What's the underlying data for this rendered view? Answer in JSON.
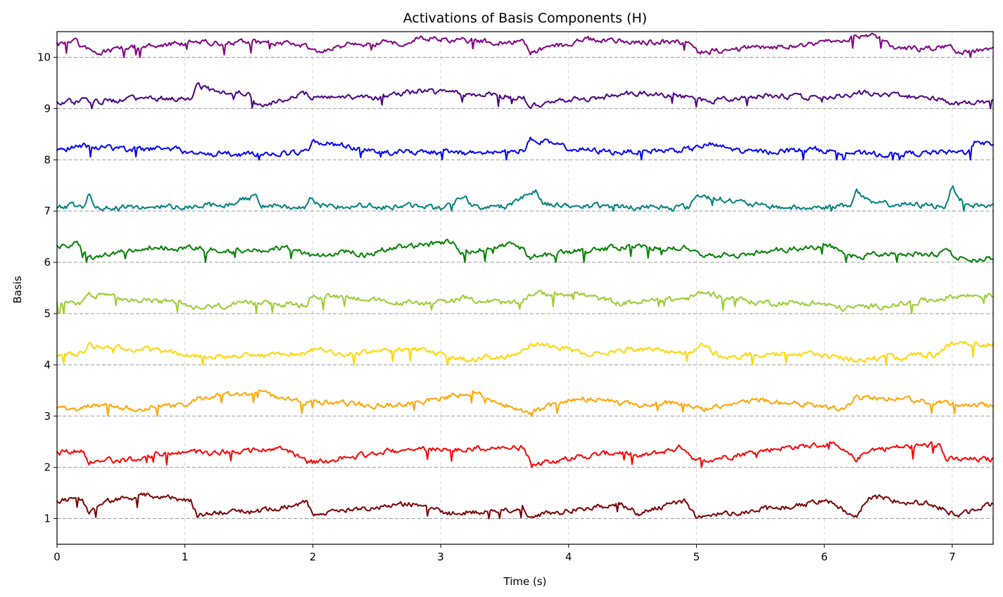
{
  "chart_data": {
    "type": "line",
    "title": "Activations of Basis Components (H)",
    "xlabel": "Time (s)",
    "ylabel": "Basis",
    "xlim": [
      0,
      7.32
    ],
    "ylim": [
      0.5,
      10.5
    ],
    "xticks": [
      0,
      1,
      2,
      3,
      4,
      5,
      6,
      7
    ],
    "xtick_labels": [
      "0",
      "1",
      "2",
      "3",
      "4",
      "5",
      "6",
      "7"
    ],
    "yticks": [
      1,
      2,
      3,
      4,
      5,
      6,
      7,
      8,
      9,
      10
    ],
    "ytick_labels": [
      "1",
      "2",
      "3",
      "4",
      "5",
      "6",
      "7",
      "8",
      "9",
      "10"
    ],
    "grid": "vertical dashed",
    "baselines": [
      1,
      2,
      3,
      4,
      5,
      6,
      7,
      8,
      9,
      10
    ],
    "series": [
      {
        "basis": 1,
        "color": "#7b0000",
        "x": [
          0,
          0.2,
          0.25,
          0.35,
          0.7,
          1.05,
          1.1,
          1.4,
          1.55,
          1.95,
          2.0,
          2.75,
          3.05,
          3.65,
          3.7,
          4.4,
          4.55,
          4.9,
          5.0,
          5.8,
          6.0,
          6.25,
          6.35,
          6.85,
          7.05,
          7.32
        ],
        "y": [
          1.36,
          1.38,
          1.05,
          1.32,
          1.45,
          1.35,
          1.05,
          1.18,
          1.12,
          1.3,
          1.1,
          1.3,
          1.1,
          1.2,
          1.05,
          1.3,
          1.1,
          1.35,
          1.05,
          1.25,
          1.38,
          1.05,
          1.42,
          1.28,
          1.05,
          1.3
        ]
      },
      {
        "basis": 2,
        "color": "#ff0000",
        "x": [
          0,
          0.2,
          0.25,
          0.6,
          0.7,
          1.0,
          1.3,
          1.8,
          1.95,
          2.0,
          2.55,
          2.85,
          3.65,
          3.7,
          4.4,
          4.55,
          4.9,
          5.0,
          5.65,
          6.05,
          6.25,
          6.35,
          6.9,
          6.95,
          7.32
        ],
        "y": [
          2.3,
          2.32,
          2.1,
          2.15,
          2.25,
          2.28,
          2.3,
          2.35,
          2.12,
          2.1,
          2.3,
          2.35,
          2.38,
          2.08,
          2.3,
          2.2,
          2.4,
          2.12,
          2.38,
          2.45,
          2.15,
          2.35,
          2.45,
          2.15,
          2.15
        ]
      },
      {
        "basis": 3,
        "color": "#ffa500",
        "x": [
          0,
          0.2,
          0.25,
          0.6,
          1.0,
          1.1,
          1.6,
          1.95,
          2.0,
          2.55,
          2.85,
          3.25,
          3.5,
          3.7,
          4.1,
          4.5,
          4.9,
          5.05,
          5.5,
          5.9,
          6.15,
          6.25,
          6.75,
          7.32
        ],
        "y": [
          3.12,
          3.15,
          3.22,
          3.15,
          3.22,
          3.35,
          3.45,
          3.25,
          3.28,
          3.2,
          3.28,
          3.45,
          3.22,
          3.08,
          3.35,
          3.22,
          3.28,
          3.15,
          3.32,
          3.22,
          3.15,
          3.38,
          3.3,
          3.2
        ]
      },
      {
        "basis": 4,
        "color": "#ffd700",
        "x": [
          0,
          0.2,
          0.25,
          0.45,
          0.7,
          1.0,
          1.35,
          1.95,
          2.05,
          2.2,
          2.5,
          2.85,
          3.05,
          3.25,
          3.6,
          3.7,
          4.0,
          4.1,
          4.5,
          4.95,
          5.05,
          5.2,
          5.5,
          5.9,
          6.2,
          6.35,
          6.85,
          7.05,
          7.32
        ],
        "y": [
          4.2,
          4.22,
          4.38,
          4.35,
          4.3,
          4.2,
          4.15,
          4.25,
          4.32,
          4.22,
          4.25,
          4.3,
          4.15,
          4.1,
          4.2,
          4.42,
          4.3,
          4.2,
          4.3,
          4.25,
          4.4,
          4.15,
          4.2,
          4.2,
          4.1,
          4.12,
          4.2,
          4.45,
          4.4
        ]
      },
      {
        "basis": 5,
        "color": "#9acd32",
        "x": [
          0,
          0.2,
          0.25,
          0.6,
          0.95,
          1.05,
          1.6,
          1.95,
          2.0,
          2.4,
          2.6,
          3.05,
          3.15,
          3.6,
          3.7,
          4.05,
          4.4,
          4.95,
          5.05,
          5.45,
          5.95,
          6.15,
          6.25,
          6.6,
          7.05,
          7.32
        ],
        "y": [
          5.22,
          5.2,
          5.38,
          5.25,
          5.22,
          5.1,
          5.2,
          5.15,
          5.35,
          5.3,
          5.2,
          5.22,
          5.3,
          5.18,
          5.38,
          5.4,
          5.2,
          5.3,
          5.42,
          5.22,
          5.2,
          5.1,
          5.12,
          5.18,
          5.35,
          5.35
        ]
      },
      {
        "basis": 6,
        "color": "#008000",
        "x": [
          0,
          0.15,
          0.25,
          0.7,
          1.0,
          1.45,
          1.8,
          2.0,
          2.3,
          2.45,
          2.55,
          2.9,
          3.1,
          3.15,
          3.35,
          3.6,
          3.7,
          4.0,
          4.45,
          4.95,
          5.05,
          5.5,
          6.05,
          6.2,
          6.45,
          6.85,
          6.95,
          7.1,
          7.32
        ],
        "y": [
          6.3,
          6.38,
          6.08,
          6.3,
          6.28,
          6.2,
          6.3,
          6.1,
          6.22,
          6.12,
          6.25,
          6.35,
          6.42,
          6.2,
          6.25,
          6.35,
          6.1,
          6.2,
          6.3,
          6.28,
          6.1,
          6.2,
          6.32,
          6.1,
          6.18,
          6.15,
          6.2,
          6.05,
          6.1
        ]
      },
      {
        "basis": 7,
        "color": "#008080",
        "x": [
          0,
          0.2,
          0.25,
          0.3,
          0.6,
          1.0,
          1.3,
          1.55,
          1.6,
          1.95,
          1.98,
          2.05,
          2.35,
          2.55,
          2.85,
          3.0,
          3.2,
          3.25,
          3.5,
          3.75,
          3.8,
          4.0,
          4.5,
          4.95,
          5.0,
          5.5,
          5.85,
          6.2,
          6.25,
          6.35,
          6.95,
          7.0,
          7.1,
          7.32
        ],
        "y": [
          7.1,
          7.08,
          7.35,
          7.08,
          7.08,
          7.1,
          7.1,
          7.3,
          7.12,
          7.08,
          7.3,
          7.08,
          7.12,
          7.08,
          7.1,
          7.05,
          7.3,
          7.08,
          7.08,
          7.42,
          7.15,
          7.1,
          7.08,
          7.08,
          7.32,
          7.1,
          7.05,
          7.12,
          7.4,
          7.15,
          7.1,
          7.48,
          7.12,
          7.1
        ]
      },
      {
        "basis": 8,
        "color": "#0000ff",
        "x": [
          0,
          0.2,
          0.55,
          0.9,
          1.0,
          1.5,
          1.95,
          2.0,
          2.3,
          2.5,
          3.05,
          3.3,
          3.65,
          3.7,
          3.8,
          4.05,
          4.4,
          4.95,
          5.1,
          5.4,
          5.95,
          6.35,
          6.6,
          7.1,
          7.2,
          7.32
        ],
        "y": [
          8.2,
          8.28,
          8.2,
          8.22,
          8.15,
          8.1,
          8.15,
          8.35,
          8.25,
          8.15,
          8.15,
          8.12,
          8.2,
          8.45,
          8.35,
          8.2,
          8.15,
          8.2,
          8.3,
          8.15,
          8.2,
          8.1,
          8.12,
          8.15,
          8.4,
          8.25
        ]
      },
      {
        "basis": 9,
        "color": "#4b0082",
        "x": [
          0,
          0.35,
          0.9,
          1.05,
          1.1,
          1.25,
          1.5,
          1.55,
          1.95,
          2.0,
          2.5,
          2.85,
          3.15,
          3.5,
          3.65,
          3.7,
          4.1,
          4.55,
          4.95,
          5.05,
          5.5,
          5.9,
          6.35,
          6.8,
          7.05,
          7.32
        ],
        "y": [
          9.12,
          9.15,
          9.2,
          9.22,
          9.45,
          9.3,
          9.3,
          9.05,
          9.28,
          9.22,
          9.2,
          9.35,
          9.28,
          9.25,
          9.22,
          9.05,
          9.2,
          9.3,
          9.22,
          9.15,
          9.25,
          9.22,
          9.3,
          9.22,
          9.1,
          9.15
        ]
      },
      {
        "basis": 10,
        "color": "#800080",
        "x": [
          0,
          0.15,
          0.2,
          0.35,
          0.6,
          1.0,
          1.5,
          1.95,
          2.0,
          2.3,
          2.75,
          2.85,
          3.0,
          3.4,
          3.65,
          3.7,
          4.15,
          4.6,
          4.95,
          5.0,
          5.5,
          5.95,
          6.35,
          6.6,
          7.0,
          7.05,
          7.32
        ],
        "y": [
          10.25,
          10.3,
          10.15,
          10.1,
          10.2,
          10.28,
          10.3,
          10.25,
          10.1,
          10.25,
          10.3,
          10.4,
          10.35,
          10.3,
          10.3,
          10.1,
          10.35,
          10.3,
          10.3,
          10.1,
          10.2,
          10.25,
          10.45,
          10.15,
          10.2,
          10.08,
          10.15
        ]
      }
    ]
  }
}
